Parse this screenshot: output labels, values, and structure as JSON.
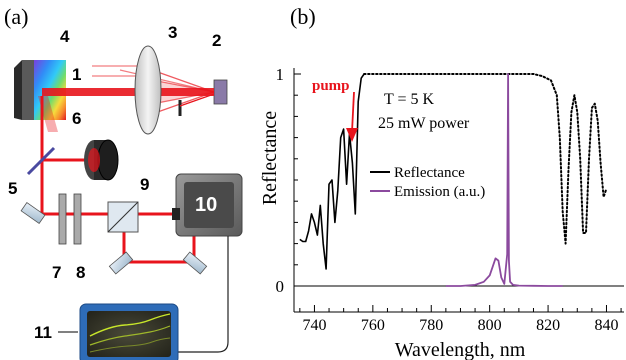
{
  "panel_a": {
    "label": "(a)",
    "callouts": [
      "1",
      "2",
      "3",
      "4",
      "5",
      "6",
      "7",
      "8",
      "9",
      "10",
      "11"
    ],
    "colors": {
      "beam": "#e8141c",
      "grating_dark": "#4a4a4a",
      "lens": "#d8d8d8",
      "detector_box": "#7a7a7a",
      "scope_frame": "#2e6cb8",
      "scope_screen": "#3a3a2a",
      "trace": "#c8e62a",
      "splitter": "#4a4aa0",
      "source": "#8a7aa8"
    }
  },
  "panel_b": {
    "label": "(b)",
    "annotation_pump": "pump",
    "annotation_temp": "T = 5 K",
    "annotation_power": "25 mW power",
    "legend": {
      "reflectance": "Reflectance",
      "emission": "Emission (a.u.)"
    },
    "colors": {
      "reflectance": "#000000",
      "emission": "#8b4a9e",
      "pump": "#e8141c"
    }
  },
  "chart_data": {
    "type": "line",
    "xlabel": "Wavelength, nm",
    "ylabel": "Reflectance",
    "xlim": [
      733,
      846
    ],
    "ylim": [
      0,
      1
    ],
    "x_ticks": [
      740,
      760,
      780,
      800,
      820,
      840
    ],
    "y_ticks": [
      0,
      1
    ],
    "series": [
      {
        "name": "Reflectance",
        "style": "solid",
        "x": [
          735,
          736,
          737,
          738,
          739,
          740,
          741,
          742,
          743,
          744,
          745,
          746,
          747,
          748,
          749,
          750,
          751,
          752,
          753,
          754,
          755,
          756,
          757
        ],
        "y": [
          0.22,
          0.21,
          0.21,
          0.26,
          0.34,
          0.3,
          0.24,
          0.38,
          0.2,
          0.08,
          0.48,
          0.5,
          0.3,
          0.45,
          0.7,
          0.74,
          0.48,
          0.72,
          0.58,
          0.34,
          0.87,
          0.98,
          1.0
        ]
      },
      {
        "name": "Reflectance (dotted)",
        "style": "dotted",
        "x": [
          757,
          760,
          770,
          780,
          790,
          800,
          810,
          815,
          818,
          821,
          823,
          824,
          825,
          826,
          827,
          828,
          829,
          830,
          831,
          832,
          833,
          834,
          835,
          836,
          837,
          838,
          839,
          840
        ],
        "y": [
          1.0,
          1.0,
          1.0,
          1.0,
          1.0,
          1.0,
          1.0,
          1.0,
          0.99,
          0.97,
          0.9,
          0.7,
          0.35,
          0.2,
          0.55,
          0.82,
          0.9,
          0.82,
          0.6,
          0.25,
          0.25,
          0.6,
          0.84,
          0.86,
          0.78,
          0.58,
          0.42,
          0.46
        ]
      },
      {
        "name": "Emission (a.u.)",
        "style": "solid",
        "x": [
          785,
          790,
          795,
          798,
          800,
          801,
          802,
          803,
          804,
          805,
          806,
          806.3,
          806.6,
          807,
          808,
          810,
          815,
          820,
          825
        ],
        "y": [
          0,
          0,
          0.005,
          0.02,
          0.05,
          0.09,
          0.13,
          0.12,
          0.04,
          0.01,
          0.15,
          1.0,
          0.12,
          0.02,
          0.005,
          0.002,
          0.001,
          0,
          0
        ]
      }
    ]
  }
}
